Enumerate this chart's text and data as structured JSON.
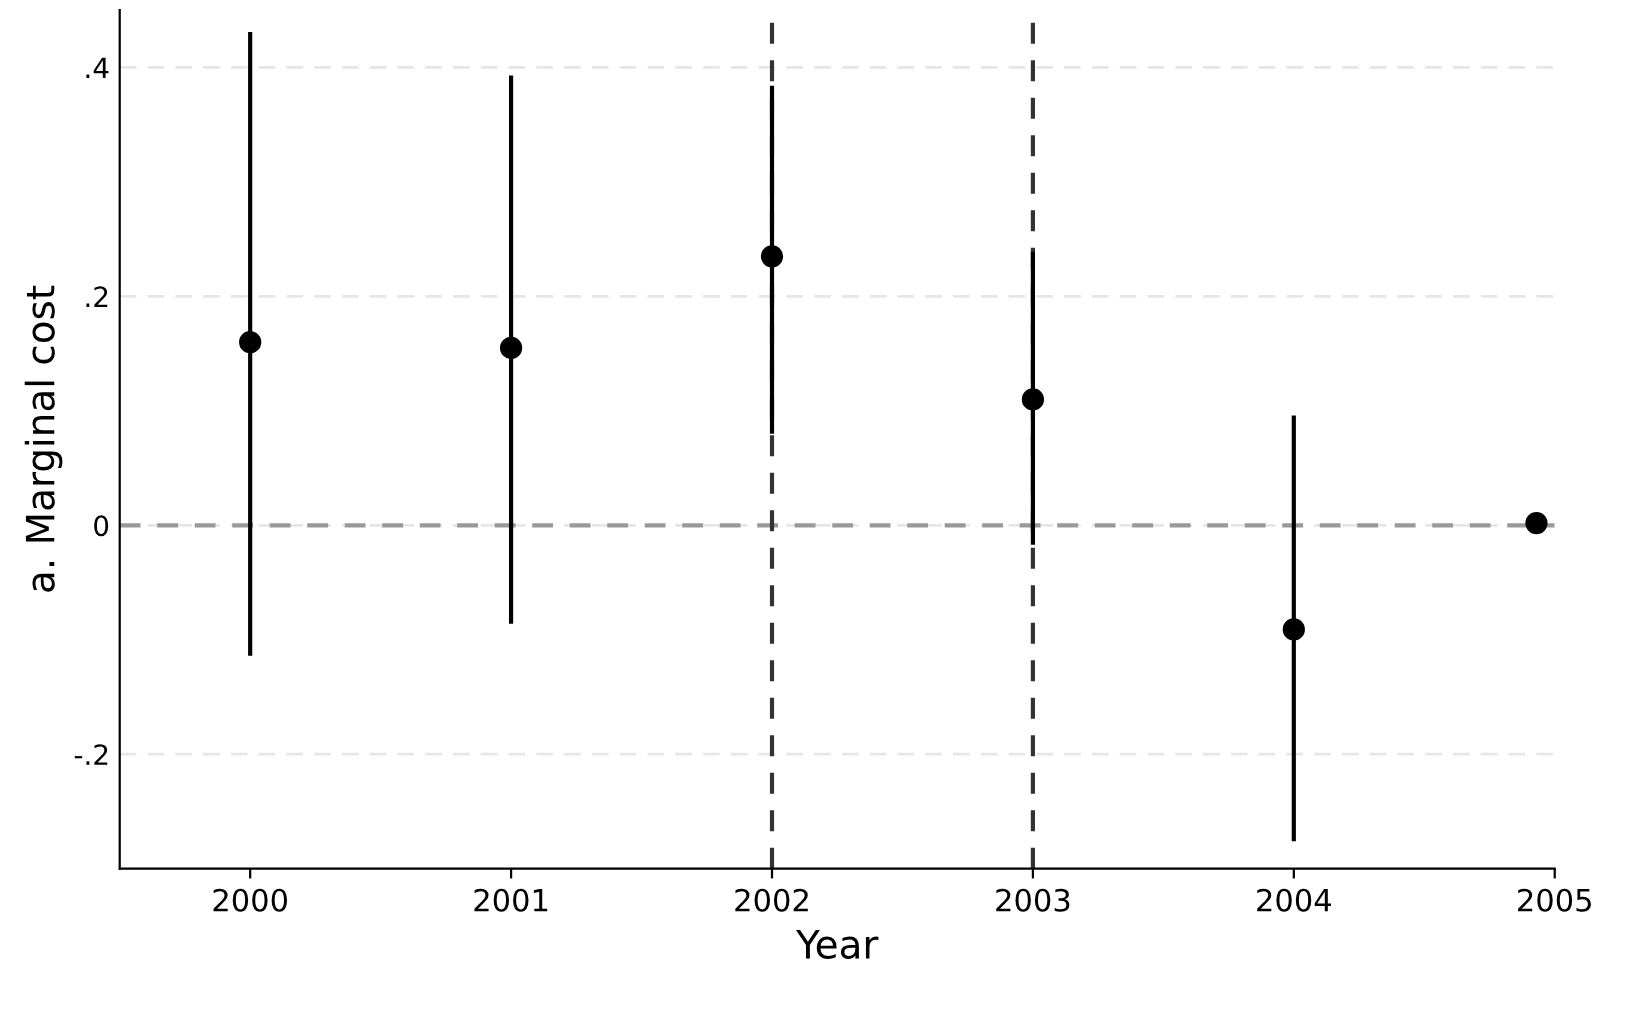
{
  "chart_data": {
    "type": "scatter",
    "xlabel": "Year",
    "ylabel": "a. Marginal cost",
    "x": [
      2000,
      2001,
      2002,
      2003,
      2004,
      2004.93
    ],
    "series": [
      {
        "color": "#000000",
        "values": [
          0.16,
          0.155,
          0.235,
          0.11,
          -0.091,
          0.002
        ],
        "errors": [
          [
            -0.114,
            0.431
          ],
          [
            -0.086,
            0.393
          ],
          [
            0.08,
            0.384
          ],
          [
            -0.017,
            0.239
          ],
          [
            -0.276,
            0.096
          ],
          null
        ]
      }
    ],
    "xlim": [
      1999.5,
      2005
    ],
    "xticks": [
      2000,
      2001,
      2002,
      2003,
      2004,
      2005
    ],
    "ylim": [
      -0.3,
      0.45
    ],
    "yticks": [
      {
        "value": -0.2,
        "label": "-.2"
      },
      0,
      {
        "value": 0.2,
        "label": ".2"
      },
      {
        "value": 0.4,
        "label": ".4"
      }
    ],
    "grid": "y",
    "marker": "circle",
    "ref_lines": [
      {
        "axis": "y",
        "value": 0,
        "color": "#999999",
        "line_style": "dashed"
      },
      {
        "axis": "x",
        "value": 2002,
        "color": "#333333",
        "line_style": "dashed"
      },
      {
        "axis": "x",
        "value": 2003,
        "color": "#333333",
        "line_style": "dashed"
      }
    ]
  }
}
